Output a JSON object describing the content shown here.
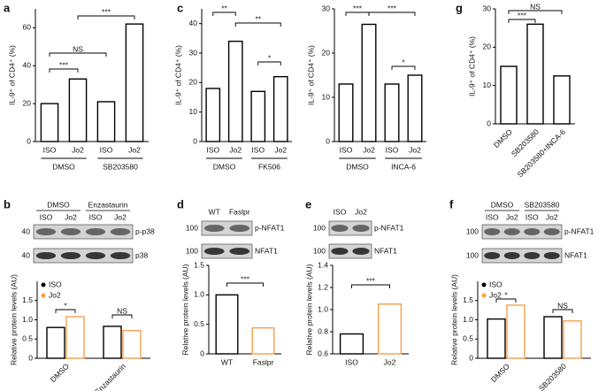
{
  "chart_data": [
    {
      "type": "bar",
      "panel": "a",
      "ylabel": "IL-9⁺ of CD4⁺ (%)",
      "categories": [
        "ISO",
        "Jo2",
        "ISO",
        "Jo2"
      ],
      "groups": [
        "DMSO",
        "SB203580"
      ],
      "values": [
        20,
        33,
        21,
        62
      ],
      "color": "#000000",
      "ylim": [
        0,
        70
      ],
      "yticks": [
        0,
        20,
        40,
        60
      ],
      "annotations": [
        "***",
        "NS",
        "***"
      ]
    },
    {
      "type": "bar",
      "panel": "c",
      "ylabel": "IL-9⁺ of CD4⁺ (%)",
      "categories": [
        "ISO",
        "Jo2",
        "ISO",
        "Jo2"
      ],
      "groups": [
        "DMSO",
        "FK506"
      ],
      "values": [
        18,
        34,
        17,
        22
      ],
      "color": "#000000",
      "ylim": [
        0,
        45
      ],
      "yticks": [
        0,
        10,
        20,
        30,
        40
      ],
      "annotations": [
        "**",
        "**",
        "*"
      ]
    },
    {
      "type": "bar",
      "ylabel": "IL-9⁺ of CD4⁺ (%)",
      "categories": [
        "ISO",
        "Jo2",
        "ISO",
        "Jo2"
      ],
      "groups": [
        "DMSO",
        "INCA-6"
      ],
      "values": [
        13,
        26.5,
        13,
        15
      ],
      "color": "#000000",
      "ylim": [
        0,
        30
      ],
      "yticks": [
        0,
        10,
        20,
        30
      ],
      "annotations": [
        "***",
        "***",
        "*"
      ]
    },
    {
      "type": "bar",
      "panel": "g",
      "ylabel": "IL-9⁺ of CD4⁺ (%)",
      "categories": [
        "DMSO",
        "SB203580",
        "SB203580+INCA-6"
      ],
      "values": [
        15,
        26,
        12.5
      ],
      "color": "#000000",
      "ylim": [
        0,
        30
      ],
      "yticks": [
        0,
        10,
        20,
        30
      ],
      "annotations": [
        "***",
        "NS"
      ]
    },
    {
      "type": "bar",
      "panel": "b",
      "ylabel": "Relative protein levels (AU)",
      "categories": [
        "DMSO",
        "Enzastaurin"
      ],
      "series": [
        {
          "name": "ISO",
          "color": "#000000",
          "values": [
            0.8,
            0.83
          ]
        },
        {
          "name": "Jo2",
          "color": "#f5a04a",
          "values": [
            1.08,
            0.72
          ]
        }
      ],
      "legend": "upper left",
      "ylim": [
        0,
        2
      ],
      "yticks": [
        0,
        0.5,
        {
          "value": 1,
          "label": "1.0"
        },
        1.5
      ],
      "annotations": [
        "*",
        "NS"
      ],
      "blot": {
        "groups": [
          "DMSO",
          "Enzastaurin"
        ],
        "lanes": [
          "ISO",
          "Jo2",
          "ISO",
          "Jo2"
        ],
        "rows": [
          {
            "label": "p-p38",
            "marker": "40"
          },
          {
            "label": "p38",
            "marker": "40"
          }
        ]
      }
    },
    {
      "type": "bar",
      "panel": "d",
      "ylabel": "Relative protein levels (AU)",
      "categories": [
        "WT",
        "Faslpr"
      ],
      "values": [
        1.0,
        0.44
      ],
      "colors": [
        "#000000",
        "#f5a04a"
      ],
      "ylim": [
        0,
        1.5
      ],
      "yticks": [
        0,
        0.5,
        {
          "value": 1,
          "label": "1.0"
        },
        1.5
      ],
      "annotations": [
        "***"
      ],
      "blot": {
        "lanes": [
          "WT",
          "Faslpr"
        ],
        "rows": [
          {
            "label": "p-NFAT1",
            "marker": "100"
          },
          {
            "label": "NFAT1",
            "marker": "100"
          }
        ]
      }
    },
    {
      "type": "bar",
      "panel": "e",
      "ylabel": "Relative protein levels (AU)",
      "categories": [
        "ISO",
        "Jo2"
      ],
      "values": [
        0.78,
        1.05
      ],
      "colors": [
        "#000000",
        "#f5a04a"
      ],
      "ylim": [
        0.6,
        1.4
      ],
      "yticks": [
        0.6,
        0.8,
        {
          "value": 1,
          "label": "1.0"
        },
        1.2,
        1.4
      ],
      "annotations": [
        "***"
      ],
      "blot": {
        "lanes": [
          "ISO",
          "Jo2"
        ],
        "rows": [
          {
            "label": "p-NFAT1",
            "marker": "100"
          },
          {
            "label": "NFAT1",
            "marker": "100"
          }
        ]
      }
    },
    {
      "type": "bar",
      "panel": "f",
      "ylabel": "Relative protein levels (AU)",
      "categories": [
        "DMSO",
        "SB203580"
      ],
      "series": [
        {
          "name": "ISO",
          "color": "#000000",
          "values": [
            1.02,
            1.08
          ]
        },
        {
          "name": "Jo2",
          "color": "#f5a04a",
          "values": [
            1.38,
            0.97
          ]
        }
      ],
      "legend": "upper left",
      "ylim": [
        0,
        2
      ],
      "yticks": [
        0,
        0.5,
        {
          "value": 1,
          "label": "1.0"
        },
        1.5
      ],
      "annotations": [
        "*",
        "NS"
      ],
      "blot": {
        "groups": [
          "DMSO",
          "SB203580"
        ],
        "lanes": [
          "ISO",
          "Jo2",
          "ISO",
          "Jo2"
        ],
        "rows": [
          {
            "label": "p-NFAT1",
            "marker": "100"
          },
          {
            "label": "NFAT1",
            "marker": "100"
          }
        ]
      }
    }
  ]
}
